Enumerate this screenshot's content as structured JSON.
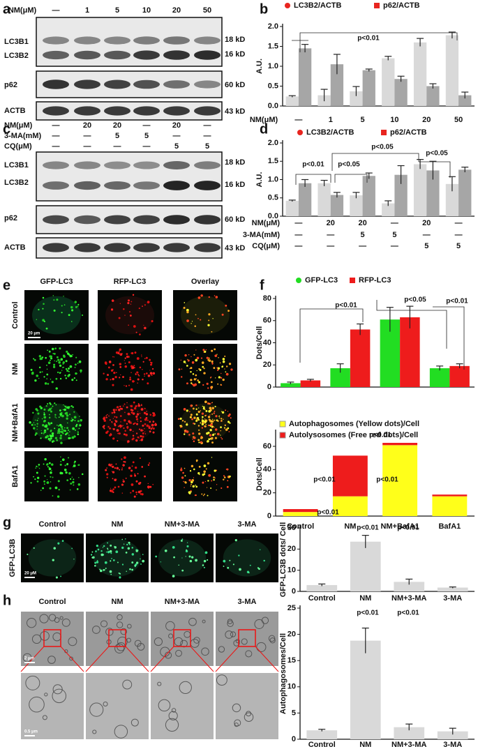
{
  "panel_labels": [
    "a",
    "b",
    "c",
    "d",
    "e",
    "f",
    "g",
    "h"
  ],
  "blot_a": {
    "header_label": "NM(μM)",
    "lanes": [
      "—",
      "1",
      "5",
      "10",
      "20",
      "50"
    ],
    "bands": [
      "LC3B1",
      "LC3B2",
      "p62",
      "ACTB"
    ],
    "sizes": [
      "18 kD",
      "16 kD",
      "60 kD",
      "43 kD"
    ]
  },
  "blot_c": {
    "conditions": [
      {
        "label": "NM(μM)",
        "values": [
          "—",
          "20",
          "20",
          "—",
          "20",
          "—"
        ]
      },
      {
        "label": "3-MA(mM)",
        "values": [
          "—",
          "—",
          "5",
          "5",
          "—",
          "—"
        ]
      },
      {
        "label": "CQ(μM)",
        "values": [
          "—",
          "—",
          "—",
          "—",
          "5",
          "5"
        ]
      }
    ],
    "bands": [
      "LC3B1",
      "LC3B2",
      "p62",
      "ACTB"
    ],
    "sizes": [
      "18 kD",
      "16 kD",
      "60 kD",
      "43 kD"
    ]
  },
  "images_e": {
    "columns": [
      "GFP-LC3",
      "RFP-LC3",
      "Overlay"
    ],
    "rows": [
      "Control",
      "NM",
      "NM+BafA1",
      "BafA1"
    ],
    "scale_bar": "20 μm"
  },
  "images_g": {
    "columns": [
      "Control",
      "NM",
      "NM+3-MA",
      "3-MA"
    ],
    "row_label": "GFP-LC3B",
    "scale_bar": "20 μM"
  },
  "images_h": {
    "columns": [
      "Control",
      "NM",
      "NM+3-MA",
      "3-MA"
    ],
    "scale_bars": [
      "2 μm",
      "0.5 μm"
    ]
  },
  "chart_data": [
    {
      "type": "bar",
      "ylabel": "A.U.",
      "xlabel": "NM(μM)",
      "categories": [
        "—",
        "1",
        "5",
        "10",
        "20",
        "50"
      ],
      "series": [
        {
          "name": "LC3B2/ACTB",
          "color": "#d9d9d9",
          "marker": "circle",
          "marker_color": "#e8251f",
          "values": [
            0.24,
            0.27,
            0.37,
            1.2,
            1.6,
            1.78
          ],
          "errors": [
            0.02,
            0.15,
            0.12,
            0.05,
            0.1,
            0.08
          ]
        },
        {
          "name": "p62/ACTB",
          "color": "#a6a6a6",
          "marker": "square",
          "marker_color": "#e8251f",
          "values": [
            1.45,
            1.05,
            0.9,
            0.68,
            0.5,
            0.27
          ],
          "errors": [
            0.1,
            0.25,
            0.03,
            0.07,
            0.06,
            0.08
          ]
        }
      ],
      "ylim": [
        0,
        2
      ],
      "yticks": [
        {
          "value": 0,
          "label": "0.0"
        },
        0.5,
        {
          "value": 1,
          "label": "1.0"
        },
        1.5,
        {
          "value": 2,
          "label": "2.0"
        }
      ],
      "annotations": [
        "p<0.01"
      ]
    },
    {
      "type": "bar",
      "ylabel": "A.U.",
      "condition_rows": [
        {
          "label": "NM(μM)",
          "values": [
            "—",
            "20",
            "20",
            "—",
            "20",
            "—"
          ]
        },
        {
          "label": "3-MA(mM)",
          "values": [
            "—",
            "—",
            "5",
            "5",
            "—",
            "—"
          ]
        },
        {
          "label": "CQ(μM)",
          "values": [
            "—",
            "—",
            "—",
            "—",
            "5",
            "5"
          ]
        }
      ],
      "series": [
        {
          "name": "LC3B2/ACTB",
          "color": "#d9d9d9",
          "marker": "circle",
          "marker_color": "#e8251f",
          "values": [
            0.42,
            0.9,
            0.57,
            0.35,
            1.42,
            0.88
          ],
          "errors": [
            0.02,
            0.08,
            0.08,
            0.07,
            0.13,
            0.2
          ]
        },
        {
          "name": "p62/ACTB",
          "color": "#a6a6a6",
          "marker": "square",
          "marker_color": "#e8251f",
          "values": [
            0.9,
            0.58,
            1.1,
            1.13,
            1.25,
            1.27
          ],
          "errors": [
            0.1,
            0.07,
            0.08,
            0.25,
            0.25,
            0.07
          ]
        }
      ],
      "ylim": [
        0,
        2
      ],
      "yticks": [
        {
          "value": 0,
          "label": "0.0"
        },
        0.5,
        {
          "value": 1,
          "label": "1.0"
        },
        1.5,
        {
          "value": 2,
          "label": "2.0"
        }
      ],
      "annotations": [
        "p<0.01",
        "p<0.05",
        "p<0.05",
        "p<0.05"
      ]
    },
    {
      "type": "bar",
      "ylabel": "Dots/Cell",
      "series": [
        {
          "name": "GFP-LC3",
          "color": "#22dd22",
          "marker": "circle",
          "values": [
            3.5,
            17,
            61,
            17
          ],
          "errors": [
            1,
            4,
            11,
            2
          ]
        },
        {
          "name": "RFP-LC3",
          "color": "#ee1c1c",
          "marker": "square",
          "values": [
            6,
            52,
            63,
            19
          ],
          "errors": [
            1,
            5,
            10,
            2
          ]
        }
      ],
      "ylim": [
        0,
        80
      ],
      "yticks": [
        0,
        20,
        40,
        60,
        80
      ],
      "annotations": [
        "p<0.01",
        "p<0.05",
        "p<0.01"
      ]
    },
    {
      "type": "stacked_bar",
      "ylabel": "Dots/Cell",
      "categories": [
        "Control",
        "NM",
        "NM+BafA1",
        "BafA1"
      ],
      "series": [
        {
          "name": "Autophagosomes (Yellow dots)/Cell",
          "color": "#ffff1a",
          "marker": "square",
          "values": [
            3.5,
            17,
            61,
            17
          ]
        },
        {
          "name": "Autolysosomes (Free red dots)/Cell",
          "color": "#ee1c1c",
          "marker": "square",
          "values": [
            2.5,
            35,
            2,
            1.5
          ]
        }
      ],
      "ylim": [
        0,
        72
      ],
      "yticks": [
        0,
        20,
        40,
        60
      ],
      "annotations": [
        "p<0.01",
        "p<0.01",
        "p<0.01",
        "p<0.01"
      ]
    },
    {
      "type": "bar",
      "ylabel": "GFP-LC3B dots/ Cell",
      "categories": [
        "Control",
        "NM",
        "NM+3-MA",
        "3-MA"
      ],
      "series": [
        {
          "color": "#d9d9d9",
          "values": [
            3,
            23.5,
            4.5,
            1.8
          ],
          "errors": [
            0.5,
            3,
            1.3,
            0.3
          ]
        }
      ],
      "ylim": [
        0,
        30
      ],
      "yticks": [
        0,
        10,
        20,
        30
      ],
      "annotations": [
        "p<0.01",
        "p<0.01"
      ]
    },
    {
      "type": "bar",
      "ylabel": "Autophagosomes/Cell",
      "categories": [
        "Control",
        "NM",
        "NM+3-MA",
        "3-MA"
      ],
      "series": [
        {
          "color": "#d9d9d9",
          "values": [
            1.7,
            18.8,
            2.3,
            1.5
          ],
          "errors": [
            0.2,
            2.4,
            0.6,
            0.6
          ]
        }
      ],
      "ylim": [
        0,
        25
      ],
      "yticks": [
        0,
        5,
        10,
        15,
        20,
        25
      ],
      "annotations": [
        "p<0.01",
        "p<0.01"
      ]
    }
  ]
}
